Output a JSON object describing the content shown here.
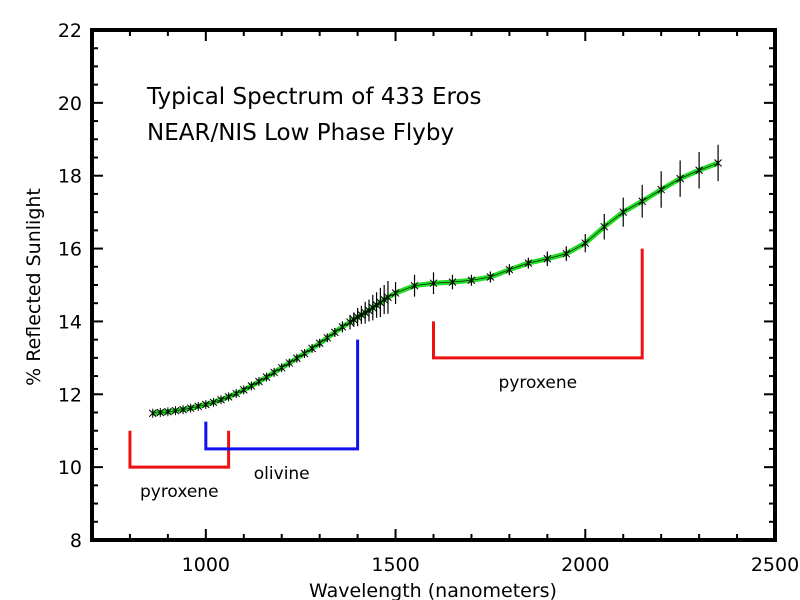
{
  "chart_data": {
    "type": "line",
    "title": "Typical Spectrum of 433 Eros",
    "subtitle": "NEAR/NIS Low Phase Flyby",
    "xlabel": "Wavelength (nanometers)",
    "ylabel": "% Reflected Sunlight",
    "xlim": [
      700,
      2500
    ],
    "ylim": [
      8,
      22
    ],
    "x_ticks": [
      1000,
      1500,
      2000,
      2500
    ],
    "y_ticks": [
      8,
      10,
      12,
      14,
      16,
      18,
      20,
      22
    ],
    "x_tick_labels": [
      "1000",
      "1500",
      "2000",
      "2500"
    ],
    "y_tick_labels": [
      "8",
      "10",
      "12",
      "14",
      "16",
      "18",
      "20",
      "22"
    ],
    "grid": false,
    "series": [
      {
        "style": "asterisk markers with error bars, green smooth fit line",
        "marker_color": "#000000",
        "line_color": "#22dd22",
        "x": [
          860,
          880,
          900,
          920,
          940,
          960,
          980,
          1000,
          1020,
          1040,
          1060,
          1080,
          1100,
          1120,
          1140,
          1160,
          1180,
          1200,
          1220,
          1240,
          1260,
          1280,
          1300,
          1320,
          1340,
          1360,
          1380,
          1390,
          1400,
          1410,
          1420,
          1430,
          1440,
          1450,
          1460,
          1470,
          1480,
          1500,
          1550,
          1600,
          1650,
          1700,
          1750,
          1800,
          1850,
          1900,
          1950,
          2000,
          2050,
          2100,
          2150,
          2200,
          2250,
          2300,
          2350
        ],
        "y": [
          11.48,
          11.5,
          11.52,
          11.55,
          11.58,
          11.62,
          11.67,
          11.72,
          11.78,
          11.85,
          11.93,
          12.02,
          12.12,
          12.23,
          12.35,
          12.47,
          12.6,
          12.73,
          12.86,
          12.99,
          13.12,
          13.26,
          13.4,
          13.55,
          13.7,
          13.85,
          13.98,
          14.05,
          14.12,
          14.18,
          14.24,
          14.3,
          14.38,
          14.45,
          14.52,
          14.6,
          14.66,
          14.78,
          14.98,
          15.05,
          15.08,
          15.13,
          15.22,
          15.42,
          15.6,
          15.72,
          15.86,
          16.15,
          16.6,
          17.0,
          17.3,
          17.62,
          17.92,
          18.15,
          18.35
        ],
        "error": [
          0.05,
          0.05,
          0.05,
          0.05,
          0.05,
          0.05,
          0.05,
          0.06,
          0.06,
          0.06,
          0.07,
          0.07,
          0.07,
          0.07,
          0.08,
          0.08,
          0.08,
          0.08,
          0.09,
          0.09,
          0.09,
          0.1,
          0.1,
          0.1,
          0.12,
          0.15,
          0.2,
          0.2,
          0.25,
          0.25,
          0.3,
          0.3,
          0.35,
          0.35,
          0.4,
          0.4,
          0.45,
          0.3,
          0.3,
          0.3,
          0.2,
          0.15,
          0.15,
          0.15,
          0.15,
          0.2,
          0.2,
          0.25,
          0.35,
          0.4,
          0.45,
          0.5,
          0.5,
          0.5,
          0.5
        ]
      }
    ],
    "annotations": [
      {
        "text": "pyroxene",
        "color": "#ee1111",
        "x_start": 800,
        "x_end": 1060,
        "y_base": 10.0,
        "y_top": 11.0
      },
      {
        "text": "olivine",
        "color": "#1111ee",
        "x_start": 1000,
        "x_end": 1400,
        "y_base": 10.5,
        "y_top_left": 11.25,
        "y_top_right": 13.5
      },
      {
        "text": "pyroxene",
        "color": "#ee1111",
        "x_start": 1600,
        "x_end": 2150,
        "y_base": 13.0,
        "y_top_left": 14.0,
        "y_top_right": 16.0
      }
    ]
  }
}
